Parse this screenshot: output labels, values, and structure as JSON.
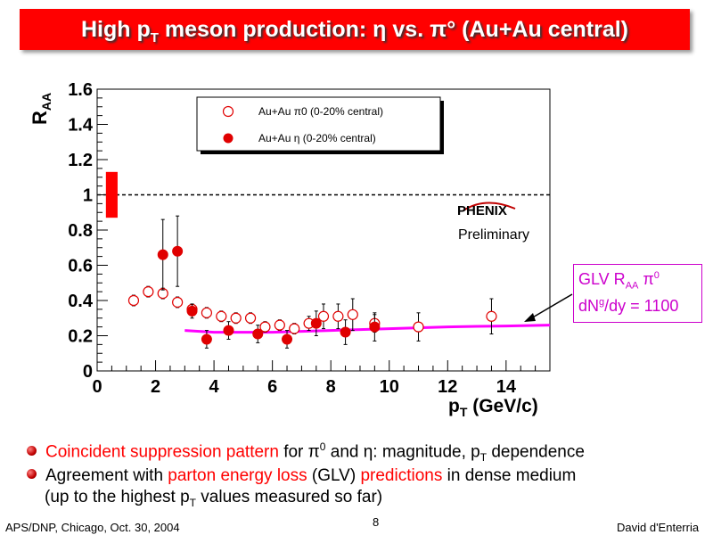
{
  "slide": {
    "title": "High p",
    "title_sub": "T",
    "title_rest": " meson production: η vs. π° (Au+Au central)",
    "page_number": "8",
    "footer_left": "APS/DNP, Chicago, Oct. 30, 2004",
    "footer_right": "David d'Enterria"
  },
  "logo": {
    "name": "PHENIX",
    "subtitle": "Preliminary"
  },
  "glv_box": {
    "line1": "GLV R",
    "line1_sub": "AA",
    "line1_end": " π",
    "line1_sup": "0",
    "line2": "dN",
    "line2_sup": "g",
    "line2_end": "/dy = 1100"
  },
  "bullets": [
    {
      "red": "Coincident suppression pattern",
      "text1": " for π",
      "sup1": "0",
      "text2": " and η: magnitude, p",
      "sub2": "T",
      "text3": " dependence"
    },
    {
      "text1": "Agreement with ",
      "red1": "parton energy loss",
      "text2": " (GLV) ",
      "red2": "predictions",
      "text3": " in dense medium"
    },
    {
      "text1": "(up to the highest p",
      "sub1": "T",
      "text2": " values measured so far)"
    }
  ],
  "chart_data": {
    "type": "scatter",
    "ylabel": "R",
    "ylabel_sub": "AA",
    "xlabel": "p",
    "xlabel_sub": "T",
    "xlabel_rest": " (GeV/c)",
    "xlim": [
      0,
      15.5
    ],
    "ylim": [
      0,
      1.6
    ],
    "xticks": [
      "0",
      "2",
      "4",
      "6",
      "8",
      "10",
      "12",
      "14"
    ],
    "yticks": [
      "0",
      "0.2",
      "0.4",
      "0.6",
      "0.8",
      "1",
      "1.2",
      "1.4",
      "1.6"
    ],
    "reference_line": 1.0,
    "norm_error_box": [
      0.87,
      1.13
    ],
    "legend": [
      "Au+Au π0 (0-20% central)",
      "Au+Au η (0-20% central)"
    ],
    "series": [
      {
        "name": "Au+Au π0 (0-20% central)",
        "marker": "open-circle",
        "color": "#e00000",
        "points": [
          {
            "x": 1.25,
            "y": 0.4,
            "err": 0.03
          },
          {
            "x": 1.75,
            "y": 0.45,
            "err": 0.03
          },
          {
            "x": 2.25,
            "y": 0.44,
            "err": 0.03
          },
          {
            "x": 2.75,
            "y": 0.39,
            "err": 0.03
          },
          {
            "x": 3.25,
            "y": 0.35,
            "err": 0.03
          },
          {
            "x": 3.75,
            "y": 0.33,
            "err": 0.03
          },
          {
            "x": 4.25,
            "y": 0.31,
            "err": 0.03
          },
          {
            "x": 4.75,
            "y": 0.3,
            "err": 0.03
          },
          {
            "x": 5.25,
            "y": 0.3,
            "err": 0.03
          },
          {
            "x": 5.75,
            "y": 0.25,
            "err": 0.03
          },
          {
            "x": 6.25,
            "y": 0.26,
            "err": 0.03
          },
          {
            "x": 6.75,
            "y": 0.24,
            "err": 0.03
          },
          {
            "x": 7.25,
            "y": 0.27,
            "err": 0.04
          },
          {
            "x": 7.75,
            "y": 0.31,
            "err": 0.07
          },
          {
            "x": 8.25,
            "y": 0.31,
            "err": 0.07
          },
          {
            "x": 8.75,
            "y": 0.32,
            "err": 0.09
          },
          {
            "x": 9.5,
            "y": 0.27,
            "err": 0.05
          },
          {
            "x": 11.0,
            "y": 0.25,
            "err": 0.08
          },
          {
            "x": 13.5,
            "y": 0.31,
            "err": 0.1
          }
        ]
      },
      {
        "name": "Au+Au η (0-20% central)",
        "marker": "filled-circle",
        "color": "#e00000",
        "points": [
          {
            "x": 2.25,
            "y": 0.66,
            "err": 0.2
          },
          {
            "x": 2.75,
            "y": 0.68,
            "err": 0.2
          },
          {
            "x": 3.25,
            "y": 0.34,
            "err": 0.04
          },
          {
            "x": 3.75,
            "y": 0.18,
            "err": 0.05
          },
          {
            "x": 4.5,
            "y": 0.23,
            "err": 0.05
          },
          {
            "x": 5.5,
            "y": 0.21,
            "err": 0.05
          },
          {
            "x": 6.5,
            "y": 0.18,
            "err": 0.05
          },
          {
            "x": 7.5,
            "y": 0.27,
            "err": 0.07
          },
          {
            "x": 8.5,
            "y": 0.22,
            "err": 0.07
          },
          {
            "x": 9.5,
            "y": 0.25,
            "err": 0.08
          }
        ]
      },
      {
        "name": "GLV R_AA π0 dNg/dy = 1100",
        "marker": "line",
        "color": "#ff00ff",
        "points": [
          {
            "x": 3.0,
            "y": 0.23
          },
          {
            "x": 4.0,
            "y": 0.22
          },
          {
            "x": 5.0,
            "y": 0.22
          },
          {
            "x": 6.0,
            "y": 0.22
          },
          {
            "x": 7.0,
            "y": 0.225
          },
          {
            "x": 8.0,
            "y": 0.23
          },
          {
            "x": 9.0,
            "y": 0.235
          },
          {
            "x": 10.0,
            "y": 0.24
          },
          {
            "x": 11.0,
            "y": 0.245
          },
          {
            "x": 12.0,
            "y": 0.25
          },
          {
            "x": 13.0,
            "y": 0.253
          },
          {
            "x": 14.0,
            "y": 0.255
          },
          {
            "x": 15.5,
            "y": 0.26
          }
        ]
      }
    ]
  }
}
